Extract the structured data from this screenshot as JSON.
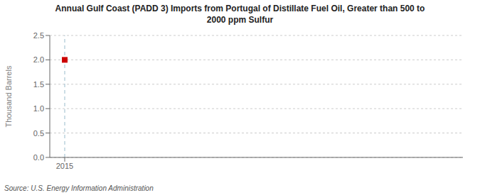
{
  "chart_data": {
    "type": "scatter",
    "title": "Annual Gulf Coast (PADD 3) Imports from Portugal of Distillate Fuel Oil, Greater than 500 to\n2000 ppm Sulfur",
    "ylabel": "Thousand Barrels",
    "source": "Source: U.S. Energy Information Administration",
    "x": [
      2015
    ],
    "values": [
      2.0
    ],
    "color": "#cc0000",
    "marker": "square",
    "xlim": [
      2014.85,
      2019.0
    ],
    "ylim": [
      0.0,
      2.5
    ],
    "xticks": [
      2015
    ],
    "yticks": [
      {
        "value": 0.0,
        "label": "0.0"
      },
      {
        "value": 0.5,
        "label": "0.5"
      },
      {
        "value": 1.0,
        "label": "1.0"
      },
      {
        "value": 1.5,
        "label": "1.5"
      },
      {
        "value": 2.0,
        "label": "2.0"
      },
      {
        "value": 2.5,
        "label": "2.5"
      }
    ],
    "grid": true,
    "reference_lines": [
      {
        "x": 2015,
        "color": "#99bbcc",
        "line_style": "dashed"
      }
    ]
  }
}
